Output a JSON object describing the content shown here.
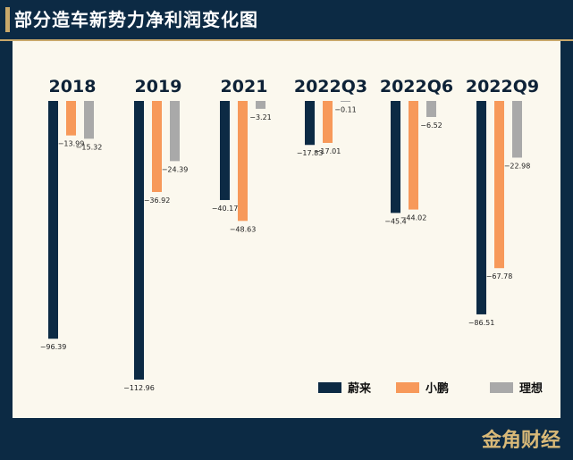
{
  "header": {
    "title": "部分造车新势力净利润变化图"
  },
  "brand": {
    "text": "金角财经"
  },
  "colors": {
    "primary": "#0c2a44",
    "accent": "#c9a86a",
    "background": "#fbf8ee"
  },
  "chart_data": {
    "type": "bar",
    "title": "部分造车新势力净利润变化图",
    "xlabel": "",
    "ylabel": "",
    "categories": [
      "2018",
      "2019",
      "2021",
      "2022Q3",
      "2022Q6",
      "2022Q9"
    ],
    "series": [
      {
        "name": "蔚来",
        "color": "#0c2a44",
        "values": [
          -96.39,
          -112.96,
          -40.17,
          -17.83,
          -45.4,
          -86.51
        ]
      },
      {
        "name": "小鹏",
        "color": "#f7995a",
        "values": [
          -13.99,
          -36.92,
          -48.63,
          -17.01,
          -44.02,
          -67.78
        ]
      },
      {
        "name": "理想",
        "color": "#a9a9a9",
        "values": [
          -15.32,
          -24.39,
          -3.21,
          -0.11,
          -6.52,
          -22.98
        ]
      }
    ],
    "value_labels": [
      [
        "−96.39",
        "−112.96",
        "−40.17",
        "−17.83",
        "−45.4",
        "−86.51"
      ],
      [
        "−13.99",
        "−36.92",
        "−48.63",
        "−17.01",
        "−44.02",
        "−67.78"
      ],
      [
        "−15.32",
        "−24.39",
        "−3.21",
        "−0.11",
        "−6.52",
        "−22.98"
      ]
    ],
    "ylim": [
      -115,
      0
    ],
    "grid": false,
    "legend": "bottom-right"
  }
}
